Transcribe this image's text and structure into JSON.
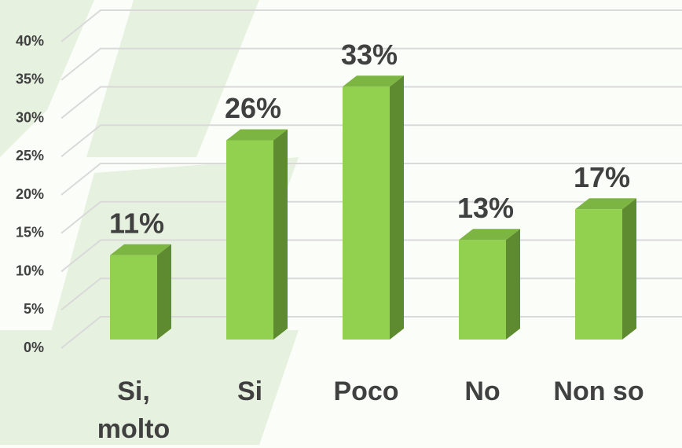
{
  "chart_data": {
    "type": "bar",
    "categories": [
      "Si, molto",
      "Si",
      "Poco",
      "No",
      "Non so"
    ],
    "values": [
      11,
      26,
      33,
      13,
      17
    ],
    "value_labels": [
      "11%",
      "26%",
      "33%",
      "13%",
      "17%"
    ],
    "colors": {
      "front": "#92d050",
      "side": "#5e8b2f",
      "top": "#7db543"
    },
    "ylim": [
      0,
      40
    ],
    "yticks": [
      {
        "value": 0,
        "label": "0%"
      },
      {
        "value": 5,
        "label": "5%"
      },
      {
        "value": 10,
        "label": "10%"
      },
      {
        "value": 15,
        "label": "15%"
      },
      {
        "value": 20,
        "label": "20%"
      },
      {
        "value": 25,
        "label": "25%"
      },
      {
        "value": 30,
        "label": "30%"
      },
      {
        "value": 35,
        "label": "35%"
      },
      {
        "value": 40,
        "label": "40%"
      }
    ],
    "grid": true
  }
}
